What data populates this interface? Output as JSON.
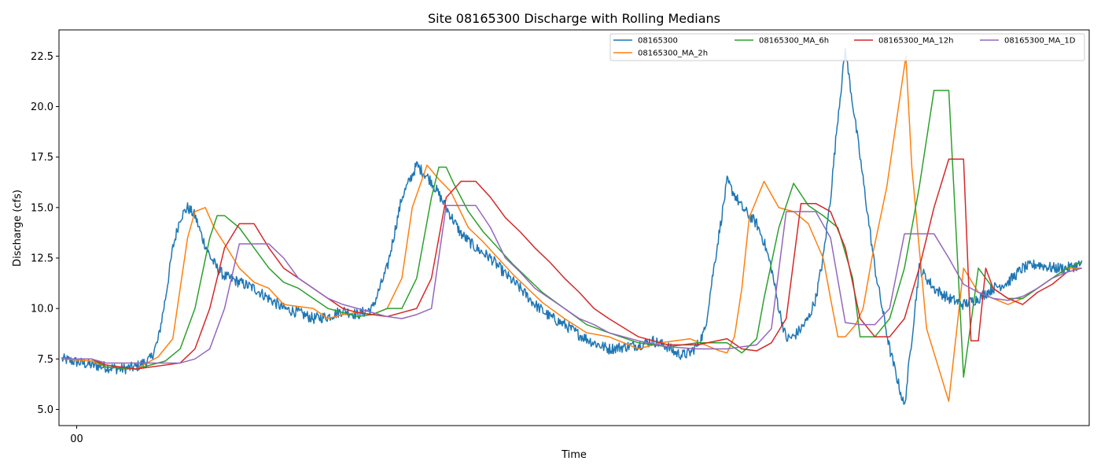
{
  "chart_data": {
    "type": "line",
    "title": "Site 08165300 Discharge with Rolling Medians",
    "xlabel": "Time",
    "ylabel": "Discharge (cfs)",
    "xlim": [
      -1.2,
      68.5
    ],
    "ylim": [
      4.2,
      23.8
    ],
    "x_ticks": [
      {
        "value": 0,
        "label": "00"
      }
    ],
    "y_ticks": [
      {
        "value": 5.0,
        "label": "5.0"
      },
      {
        "value": 7.5,
        "label": "7.5"
      },
      {
        "value": 10.0,
        "label": "10.0"
      },
      {
        "value": 12.5,
        "label": "12.5"
      },
      {
        "value": 15.0,
        "label": "15.0"
      },
      {
        "value": 17.5,
        "label": "17.5"
      },
      {
        "value": 20.0,
        "label": "20.0"
      },
      {
        "value": 22.5,
        "label": "22.5"
      }
    ],
    "grid": false,
    "legend_position": "top-right",
    "series": [
      {
        "name": "08165300",
        "color": "#1f77b4",
        "noisy": true,
        "x": [
          -1,
          1,
          2,
          3,
          4,
          5,
          5.5,
          6,
          6.5,
          7,
          7.5,
          8,
          8.5,
          9,
          9.5,
          10,
          11,
          12,
          13,
          14,
          15,
          16,
          17,
          18,
          19,
          20,
          21,
          22,
          23,
          24,
          25,
          26,
          27,
          28,
          29,
          30,
          31,
          32,
          33,
          34,
          35,
          36,
          37,
          38,
          39,
          40,
          40.5,
          41,
          41.5,
          42,
          42.5,
          43,
          44,
          45,
          45.5,
          46,
          46.5,
          47,
          47.5,
          48,
          48.5,
          49,
          49.5,
          50,
          50.5,
          51,
          51.5,
          52,
          53,
          54,
          55,
          56,
          57,
          58,
          59,
          60,
          61,
          62,
          63,
          64,
          65,
          66,
          67,
          68
        ],
        "y": [
          7.5,
          7.2,
          7.1,
          7.0,
          7.1,
          7.5,
          8.4,
          10.5,
          13.0,
          14.5,
          15.0,
          14.6,
          13.5,
          12.6,
          12.0,
          11.6,
          11.3,
          11.0,
          10.5,
          10.0,
          9.8,
          9.5,
          9.6,
          9.9,
          9.7,
          10.0,
          12.0,
          15.5,
          17.1,
          16.3,
          15.0,
          13.7,
          13.0,
          12.5,
          11.7,
          11.0,
          10.2,
          9.6,
          9.2,
          8.7,
          8.3,
          8.0,
          8.1,
          8.2,
          8.4,
          8.1,
          7.8,
          7.7,
          7.8,
          8.2,
          8.9,
          11.5,
          16.3,
          15.0,
          14.6,
          14.2,
          13.3,
          12.0,
          10.0,
          8.5,
          8.6,
          9.0,
          9.5,
          10.5,
          12.5,
          15.5,
          19.5,
          22.8,
          17.5,
          12.0,
          8.0,
          5.1,
          12.0,
          11.0,
          10.5,
          10.2,
          10.5,
          11.0,
          11.3,
          12.0,
          12.2,
          12.0,
          12.0,
          12.2
        ]
      },
      {
        "name": "08165300_MA_2h",
        "color": "#ff7f0e",
        "x": [
          -1,
          1,
          2,
          4,
          5.5,
          6.5,
          7,
          7.5,
          8,
          8.7,
          9.3,
          10,
          11,
          12,
          13,
          14,
          15,
          16,
          17,
          18,
          19,
          20,
          21,
          22,
          22.7,
          23.7,
          24.5,
          25.3,
          26.5,
          27.5,
          28.5,
          29.5,
          30.5,
          31.5,
          33,
          34.5,
          36,
          38,
          39.5,
          41.5,
          43.5,
          44,
          44.5,
          45,
          45.5,
          46.5,
          47.5,
          48.5,
          49.5,
          50.5,
          51,
          51.5,
          52,
          52.7,
          53.2,
          53.8,
          54.8,
          56.1,
          56.5,
          57.5,
          59,
          60,
          61,
          62,
          63,
          64,
          65,
          66,
          67,
          68
        ],
        "y": [
          7.5,
          7.4,
          7.1,
          7.0,
          7.6,
          8.5,
          11.0,
          13.5,
          14.8,
          15.0,
          14.0,
          13.2,
          12.0,
          11.3,
          11.0,
          10.2,
          10.1,
          10.0,
          9.5,
          9.7,
          9.8,
          9.7,
          10.0,
          11.5,
          15.0,
          17.1,
          16.4,
          15.8,
          14.0,
          13.3,
          12.5,
          11.7,
          11.0,
          10.3,
          9.5,
          8.8,
          8.6,
          8.0,
          8.3,
          8.5,
          7.9,
          7.8,
          8.6,
          11.0,
          14.5,
          16.3,
          15.0,
          14.8,
          14.2,
          12.5,
          10.5,
          8.6,
          8.6,
          9.2,
          10.0,
          12.5,
          16.0,
          22.5,
          17.0,
          9.0,
          5.4,
          12.0,
          10.8,
          10.5,
          10.2,
          10.5,
          11.0,
          11.5,
          12.0,
          12.0
        ]
      },
      {
        "name": "08165300_MA_6h",
        "color": "#2ca02c",
        "x": [
          -1,
          1,
          2,
          4,
          6,
          7,
          8,
          9,
          9.5,
          10,
          11,
          12,
          13,
          14,
          15,
          16,
          17,
          18,
          19,
          20,
          21,
          22,
          23,
          24,
          24.5,
          25,
          25.5,
          26.5,
          27.5,
          28.5,
          29.5,
          30.5,
          31.5,
          33,
          34.5,
          36,
          38,
          40,
          42,
          44,
          45,
          46,
          46.5,
          47.5,
          48.5,
          49.5,
          50.5,
          51.5,
          52.5,
          53,
          54,
          55,
          56,
          57,
          58,
          59,
          60,
          61,
          62,
          63,
          64,
          65,
          66,
          67,
          68
        ],
        "y": [
          7.5,
          7.5,
          7.1,
          7.0,
          7.4,
          8.0,
          10.0,
          13.5,
          14.6,
          14.6,
          14.0,
          13.0,
          12.0,
          11.3,
          11.0,
          10.5,
          10.0,
          9.8,
          9.6,
          9.7,
          10.0,
          10.0,
          11.5,
          15.5,
          17.0,
          17.0,
          16.2,
          14.8,
          13.8,
          13.0,
          12.2,
          11.5,
          10.8,
          10.0,
          9.2,
          8.8,
          8.3,
          8.1,
          8.3,
          8.3,
          7.8,
          8.5,
          10.5,
          14.0,
          16.2,
          15.1,
          14.6,
          14.0,
          11.5,
          8.6,
          8.6,
          9.5,
          12.0,
          16.0,
          20.8,
          20.8,
          6.6,
          12.0,
          11.0,
          10.5,
          10.5,
          11.0,
          11.5,
          12.0,
          12.3
        ]
      },
      {
        "name": "08165300_MA_12h",
        "color": "#d62728",
        "x": [
          -1,
          1,
          2,
          4,
          7,
          8,
          9,
          10,
          11,
          12,
          13,
          14,
          15,
          16,
          17,
          18,
          19,
          20,
          21,
          22,
          23,
          24,
          25,
          26,
          27,
          28,
          29,
          30,
          31,
          32,
          33,
          34,
          35,
          36,
          38,
          40,
          42,
          44,
          45,
          46,
          47,
          48,
          49,
          50,
          51,
          52,
          53,
          54,
          55,
          56,
          57,
          58,
          59,
          60,
          60.5,
          61,
          61.5,
          62,
          63,
          64,
          65,
          66,
          67,
          68
        ],
        "y": [
          7.5,
          7.5,
          7.2,
          7.0,
          7.3,
          8.0,
          10.0,
          13.0,
          14.2,
          14.2,
          13.0,
          12.0,
          11.5,
          11.0,
          10.5,
          10.0,
          9.8,
          9.7,
          9.6,
          9.8,
          10.0,
          11.5,
          15.5,
          16.3,
          16.3,
          15.5,
          14.5,
          13.8,
          13.0,
          12.3,
          11.5,
          10.8,
          10.0,
          9.5,
          8.6,
          8.2,
          8.2,
          8.5,
          8.0,
          7.9,
          8.3,
          9.5,
          15.2,
          15.2,
          14.8,
          13.0,
          9.5,
          8.6,
          8.6,
          9.5,
          12.0,
          15.0,
          17.4,
          17.4,
          8.4,
          8.4,
          12.0,
          11.0,
          10.5,
          10.2,
          10.8,
          11.2,
          11.8,
          12.0
        ]
      },
      {
        "name": "08165300_MA_1D",
        "color": "#9467bd",
        "x": [
          -1,
          1,
          2,
          4,
          7,
          8,
          9,
          10,
          11,
          12,
          13,
          14,
          15,
          16,
          17,
          18,
          19,
          20,
          21,
          22,
          23,
          24,
          25,
          26,
          27,
          28,
          29,
          30,
          31,
          32,
          33,
          34,
          35,
          36,
          38,
          40,
          42,
          44,
          45,
          46,
          47,
          48,
          49,
          50,
          51,
          52,
          53,
          54,
          55,
          56,
          57,
          58,
          59,
          60,
          61,
          62,
          63,
          64,
          65,
          66,
          67,
          68
        ],
        "y": [
          7.5,
          7.5,
          7.3,
          7.3,
          7.3,
          7.5,
          8.0,
          10.0,
          13.2,
          13.2,
          13.2,
          12.5,
          11.5,
          11.0,
          10.5,
          10.2,
          10.0,
          9.8,
          9.6,
          9.5,
          9.7,
          10.0,
          15.1,
          15.1,
          15.1,
          14.0,
          12.5,
          11.8,
          11.0,
          10.5,
          10.0,
          9.5,
          9.2,
          8.8,
          8.4,
          8.1,
          8.0,
          8.0,
          8.1,
          8.2,
          9.0,
          14.8,
          14.8,
          14.8,
          13.5,
          9.3,
          9.2,
          9.2,
          10.0,
          13.7,
          13.7,
          13.7,
          12.5,
          11.2,
          10.8,
          10.5,
          10.4,
          10.6,
          11.0,
          11.5,
          11.8,
          12.0
        ]
      }
    ]
  }
}
